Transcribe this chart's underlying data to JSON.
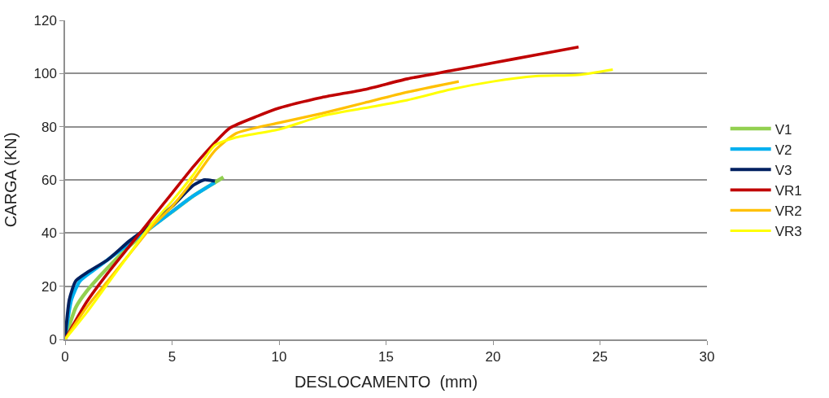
{
  "chart_data": {
    "type": "line",
    "xlabel": "DESLOCAMENTO  (mm)",
    "ylabel": "CARGA (KN)",
    "xlim": [
      0,
      30
    ],
    "xticks": [
      0,
      5,
      10,
      15,
      20,
      25,
      30
    ],
    "ylim": [
      0,
      120
    ],
    "yticks": [
      0,
      20,
      40,
      60,
      80,
      100,
      120
    ],
    "grid": "y",
    "legend": "right",
    "marker": "none",
    "line_style": "solid",
    "series": [
      {
        "name": "V1",
        "color": "#92d050",
        "x": [
          0,
          0.5,
          1,
          2,
          3,
          4,
          5,
          6,
          7,
          7.4
        ],
        "values": [
          0,
          12,
          18,
          27,
          35,
          42,
          48,
          54,
          59,
          61
        ]
      },
      {
        "name": "V2",
        "color": "#00b0f0",
        "x": [
          0,
          0.3,
          0.7,
          1.5,
          3,
          4.5,
          6,
          7
        ],
        "values": [
          0,
          15,
          22,
          27,
          36,
          45,
          54,
          59
        ]
      },
      {
        "name": "V3",
        "color": "#002060",
        "x": [
          0,
          0.2,
          0.5,
          1,
          2,
          3,
          4,
          5,
          6,
          6.5,
          7
        ],
        "values": [
          0,
          15,
          22,
          25,
          30,
          37,
          43,
          50,
          58,
          60,
          59.5
        ]
      },
      {
        "name": "VR1",
        "color": "#c00000",
        "x": [
          0,
          1,
          2,
          3,
          4,
          5,
          6,
          7,
          7.7,
          9,
          10,
          12,
          14,
          16,
          18,
          20,
          22,
          24
        ],
        "values": [
          0,
          14,
          25,
          35,
          45,
          55,
          65,
          74,
          79.5,
          84,
          87,
          91,
          94,
          98,
          101,
          104,
          107,
          110
        ]
      },
      {
        "name": "VR2",
        "color": "#ffc000",
        "x": [
          0,
          1,
          2,
          3,
          4,
          5,
          6,
          7,
          8,
          10,
          12,
          14,
          16,
          18.4
        ],
        "values": [
          0,
          12,
          22,
          32,
          42,
          50,
          60,
          71,
          77.5,
          81.5,
          85,
          89,
          93,
          97
        ]
      },
      {
        "name": "VR3",
        "color": "#ffff00",
        "x": [
          0,
          1,
          2,
          3,
          4,
          5,
          6,
          7,
          8,
          10,
          12,
          14,
          16,
          18,
          20,
          22,
          24,
          25.6
        ],
        "values": [
          0,
          10,
          21,
          32,
          43,
          52,
          62,
          73,
          76,
          79,
          84,
          87,
          90,
          94,
          97,
          99,
          99.5,
          101.5
        ]
      }
    ]
  }
}
